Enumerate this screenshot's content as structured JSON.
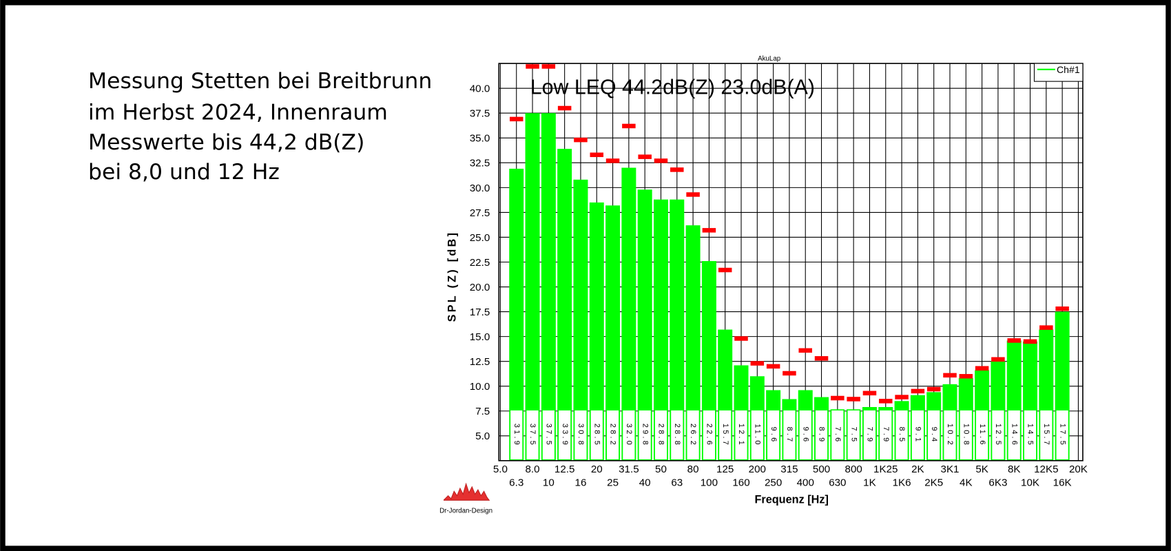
{
  "description": [
    "Messung Stetten bei Breitbrunn",
    "im Herbst 2024, Innenraum",
    "Messwerte bis 44,2 dB(Z)",
    "bei 8,0 und 12 Hz"
  ],
  "logo": "Dr-Jordan-Design",
  "chart_data": {
    "type": "bar",
    "title": "AkuLap",
    "annotation": "Low LEQ 44.2dB(Z) 23.0dB(A)",
    "x_label": "Frequenz [Hz]",
    "y_label": "SPL (Z) [dB]",
    "categories": [
      "5.0",
      "6.3",
      "8.0",
      "10",
      "12.5",
      "16",
      "20",
      "25",
      "31.5",
      "40",
      "50",
      "63",
      "80",
      "100",
      "125",
      "160",
      "200",
      "250",
      "315",
      "400",
      "500",
      "630",
      "800",
      "1K",
      "1K25",
      "1K6",
      "2K",
      "2K5",
      "3K1",
      "4K",
      "5K",
      "6K3",
      "8K",
      "10K",
      "12K5",
      "16K",
      "20K"
    ],
    "series": [
      {
        "name": "Ch#1",
        "color": "#00ff00",
        "values": [
          null,
          31.9,
          37.5,
          37.5,
          33.9,
          30.8,
          28.5,
          28.2,
          32.0,
          29.8,
          28.8,
          28.8,
          26.2,
          22.6,
          15.7,
          12.1,
          11.0,
          9.6,
          8.7,
          9.6,
          8.9,
          7.6,
          7.5,
          7.9,
          7.9,
          8.5,
          9.1,
          9.4,
          10.2,
          10.8,
          11.6,
          12.5,
          14.6,
          14.5,
          15.7,
          17.5,
          null
        ],
        "value_labels": [
          null,
          "31.9",
          "37.5",
          "37.5",
          "33.9",
          "30.8",
          "28.5",
          "28.2",
          "32.0",
          "29.8",
          "28.8",
          "28.8",
          "26.2",
          "22.6",
          "15.7",
          "12.1",
          "11.0",
          "9.6",
          "8.7",
          "9.6",
          "8.9",
          "7.6",
          "7.5",
          "7.9",
          "7.9",
          "8.5",
          "9.1",
          "9.4",
          "10.2",
          "10.8",
          "11.6",
          "12.5",
          "14.6",
          "14.5",
          "15.7",
          "17.5",
          null
        ]
      }
    ],
    "peaks": {
      "color": "#ff0000",
      "values": [
        null,
        36.9,
        42.2,
        42.2,
        38.0,
        34.8,
        33.3,
        32.7,
        36.2,
        33.1,
        32.7,
        31.8,
        29.3,
        25.7,
        21.7,
        14.8,
        12.3,
        12.0,
        11.3,
        13.6,
        12.8,
        8.8,
        8.7,
        9.3,
        8.5,
        8.9,
        9.5,
        9.7,
        11.1,
        11.0,
        11.8,
        12.7,
        14.6,
        14.5,
        15.9,
        17.8,
        null
      ]
    },
    "ylim": [
      2.5,
      42.5
    ],
    "yticks": [
      {
        "value": 5,
        "label": "5.0"
      },
      7.5,
      {
        "value": 10,
        "label": "10.0"
      },
      12.5,
      {
        "value": 15,
        "label": "15.0"
      },
      17.5,
      {
        "value": 20,
        "label": "20.0"
      },
      22.5,
      {
        "value": 25,
        "label": "25.0"
      },
      27.5,
      {
        "value": 30,
        "label": "30.0"
      },
      32.5,
      {
        "value": 35,
        "label": "35.0"
      },
      37.5,
      {
        "value": 40,
        "label": "40.0"
      }
    ],
    "grid": true,
    "legend": "top-right"
  }
}
